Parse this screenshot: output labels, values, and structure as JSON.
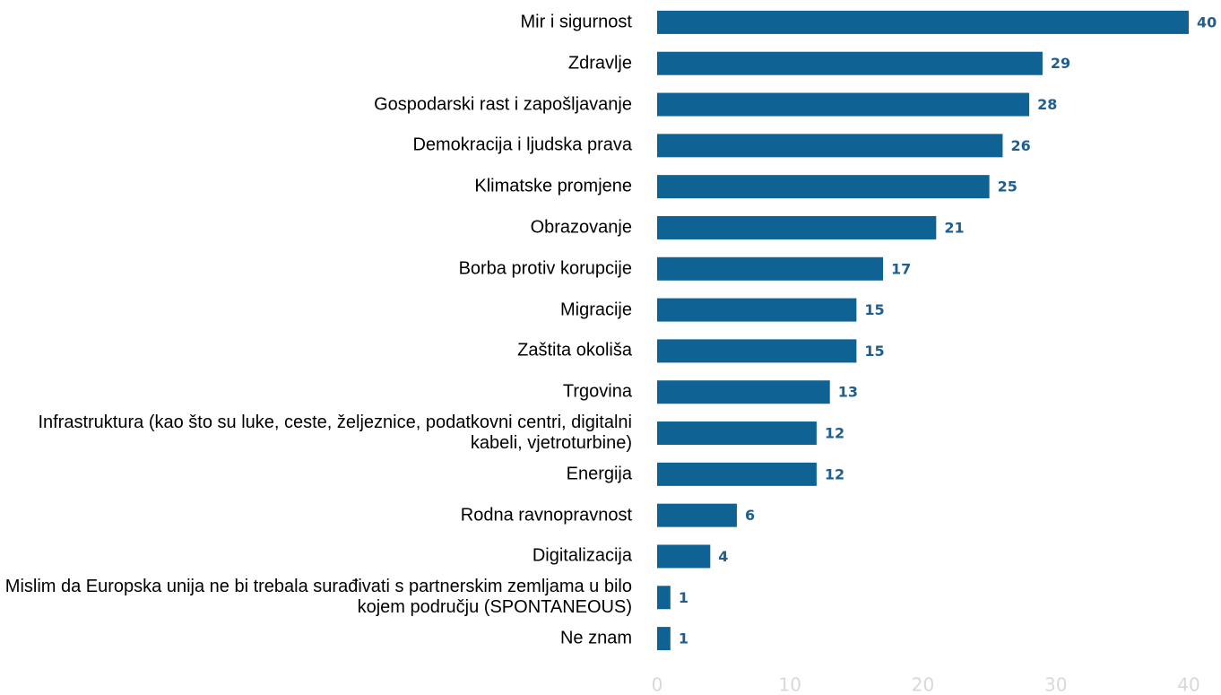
{
  "chart_data": {
    "type": "hbar",
    "categories": [
      "Mir i sigurnost",
      "Zdravlje",
      "Gospodarski rast i zapošljavanje",
      "Demokracija i ljudska prava",
      "Klimatske promjene",
      "Obrazovanje",
      "Borba protiv korupcije",
      "Migracije",
      "Zaštita okoliša",
      "Trgovina",
      "Infrastruktura (kao što su luke, ceste, željeznice, podatkovni centri, digitalni kabeli, vjetroturbine)",
      "Energija",
      "Rodna ravnopravnost",
      "Digitalizacija",
      "Mislim da Europska unija ne bi trebala surađivati s partnerskim zemljama u bilo kojem području (SPONTANEOUS)",
      "Ne znam"
    ],
    "values": [
      40,
      29,
      28,
      26,
      25,
      21,
      17,
      15,
      15,
      13,
      12,
      12,
      6,
      4,
      1,
      1
    ],
    "color": "#0e6394",
    "xlim": [
      0,
      40
    ],
    "xticks": [
      0,
      10,
      20,
      30,
      40
    ]
  }
}
